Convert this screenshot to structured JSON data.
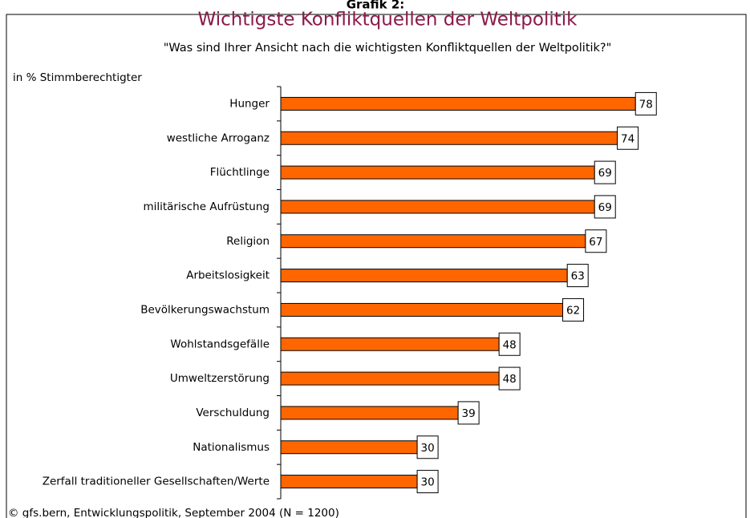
{
  "chart_data": {
    "type": "bar",
    "orientation": "horizontal",
    "figure_label": "Grafik 2:",
    "title": "Wichtigste Konfliktquellen der Weltpolitik",
    "subtitle": "\"Was sind Ihrer Ansicht nach die wichtigsten Konfliktquellen der Weltpolitik?\"",
    "unit_label": "in % Stimmberechtigter",
    "source": "© gfs.bern, Entwicklungspolitik, September 2004 (N = 1200)",
    "categories": [
      "Hunger",
      "westliche Arroganz",
      "Flüchtlinge",
      "militärische Aufrüstung",
      "Religion",
      "Arbeitslosigkeit",
      "Bevölkerungswachstum",
      "Wohlstandsgefälle",
      "Umweltzerstörung",
      "Verschuldung",
      "Nationalismus",
      "Zerfall traditioneller Gesellschaften/Werte"
    ],
    "values": [
      78,
      74,
      69,
      69,
      67,
      63,
      62,
      48,
      48,
      39,
      30,
      30
    ],
    "color": "#ff6600",
    "xlim": [
      0,
      100
    ]
  }
}
